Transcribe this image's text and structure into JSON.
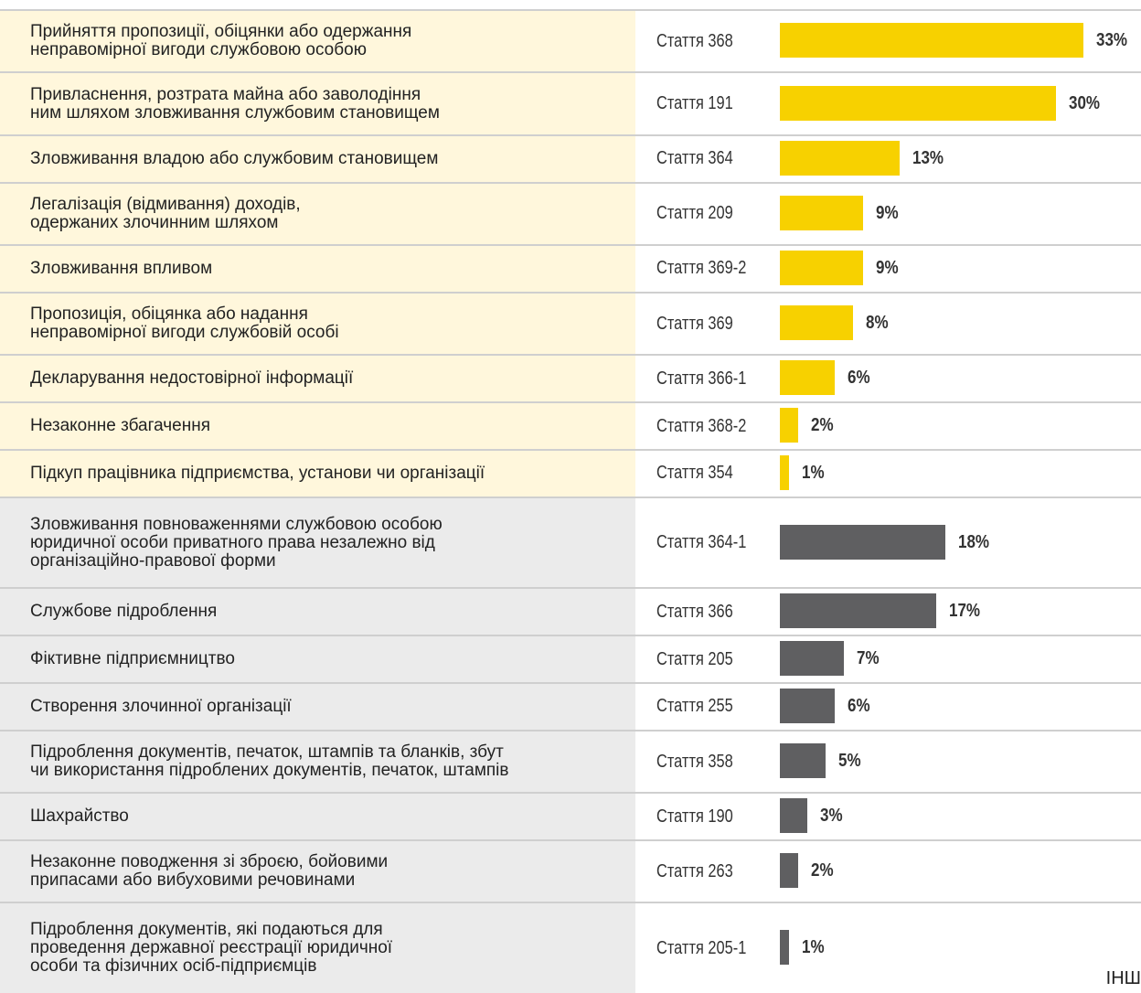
{
  "chart_data": {
    "type": "bar",
    "xlim": [
      0,
      33
    ],
    "annotation": "ІНШ",
    "series": [
      {
        "color": "#f7d100",
        "background": "#fff7dc",
        "categories": [
          "Прийняття пропозиції, обіцянки або одержання\nнеправомірної вигоди службовою особою",
          "Привласнення, розтрата майна або заволодіння\nним шляхом зловживання службовим становищем",
          "Зловживання владою або службовим становищем",
          "Легалізація (відмивання) доходів,\nодержаних злочинним шляхом",
          "Зловживання впливом",
          "Пропозиція, обіцянка або надання\nнеправомірної вигоди службовій особі",
          "Декларування недостовірної інформації",
          "Незаконне збагачення",
          "Підкуп працівника підприємства, установи чи організації"
        ],
        "articles": [
          "Стаття 368",
          "Стаття 191",
          "Стаття 364",
          "Стаття 209",
          "Стаття 369-2",
          "Стаття 369",
          "Стаття 366-1",
          "Стаття 368-2",
          "Стаття 354"
        ],
        "values": [
          33,
          30,
          13,
          9,
          9,
          8,
          6,
          2,
          1
        ],
        "value_labels": [
          "33%",
          "30%",
          "13%",
          "9%",
          "9%",
          "8%",
          "6%",
          "2%",
          "1%"
        ]
      },
      {
        "color": "#5f5f61",
        "background": "#ebebeb",
        "categories": [
          "Зловживання повноваженнями службовою особою\nюридичної особи приватного права незалежно від\nорганізаційно-правової форми",
          "Службове підроблення",
          "Фіктивне підприємництво",
          "Створення злочинної організації",
          "Підроблення документів, печаток, штампів та бланків, збут\nчи використання підроблених документів, печаток, штампів",
          "Шахрайство",
          "Незаконне поводження зі зброєю, бойовими\nприпасами або вибуховими речовинами",
          "Підроблення документів, які подаються для\nпроведення державної реєстрації юридичної\nособи та фізичних осіб-підприємців"
        ],
        "articles": [
          "Стаття 364-1",
          "Стаття 366",
          "Стаття 205",
          "Стаття 255",
          "Стаття 358",
          "Стаття 190",
          "Стаття 263",
          "Стаття 205-1"
        ],
        "values": [
          18,
          17,
          7,
          6,
          5,
          3,
          2,
          1
        ],
        "value_labels": [
          "18%",
          "17%",
          "7%",
          "6%",
          "5%",
          "3%",
          "2%",
          "1%"
        ]
      }
    ]
  }
}
